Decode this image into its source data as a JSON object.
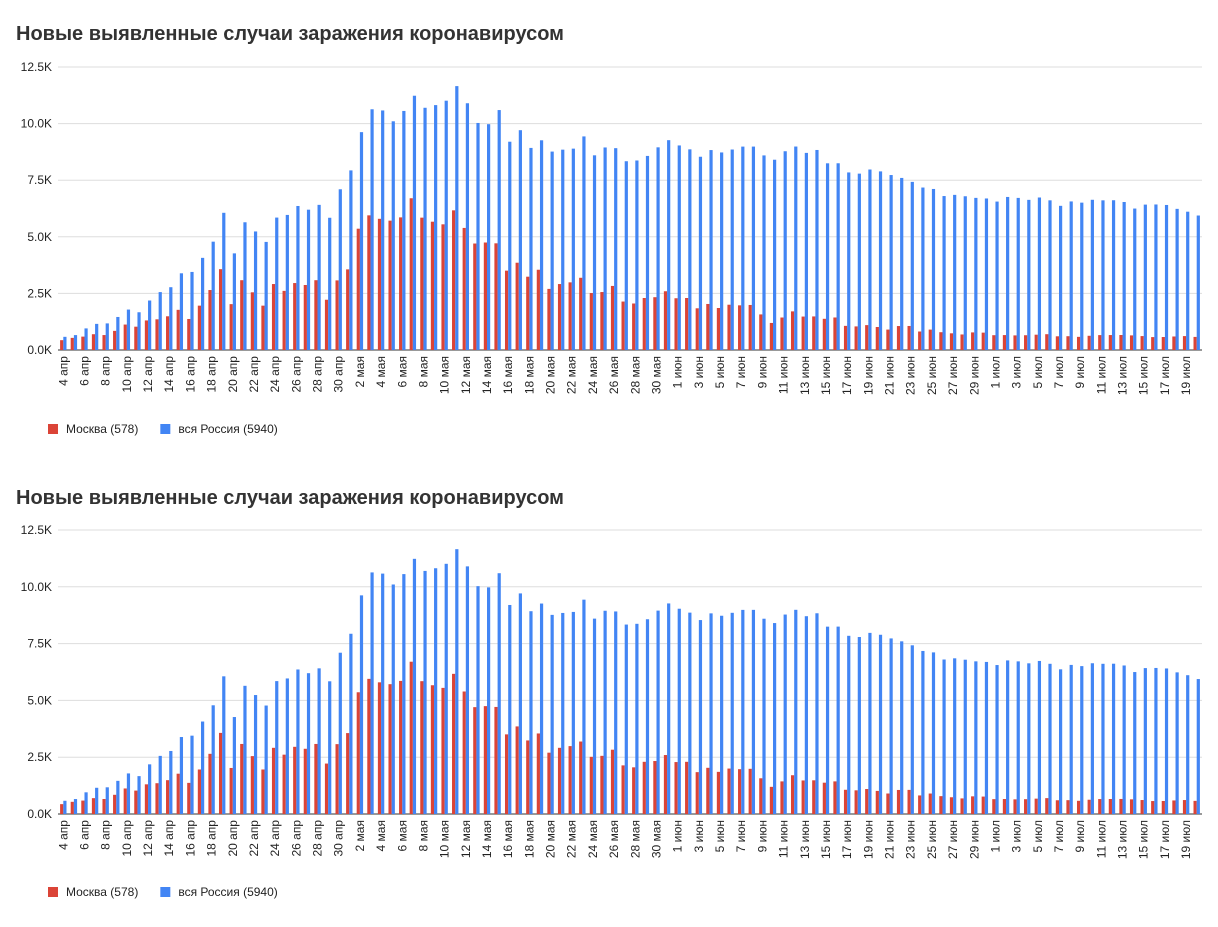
{
  "chart_data": [
    {
      "type": "bar",
      "title": "Новые выявленные случаи заражения коронавирусом",
      "categories": [
        "4 апр",
        null,
        "6 апр",
        null,
        "8 апр",
        null,
        "10 апр",
        null,
        "12 апр",
        null,
        "14 апр",
        null,
        "16 апр",
        null,
        "18 апр",
        null,
        "20 апр",
        null,
        "22 апр",
        null,
        "24 апр",
        null,
        "26 апр",
        null,
        "28 апр",
        null,
        "30 апр",
        null,
        "2 мая",
        null,
        "4 мая",
        null,
        "6 мая",
        null,
        "8 мая",
        null,
        "10 мая",
        null,
        "12 мая",
        null,
        "14 мая",
        null,
        "16 мая",
        null,
        "18 мая",
        null,
        "20 мая",
        null,
        "22 мая",
        null,
        "24 мая",
        null,
        "26 мая",
        null,
        "28 мая",
        null,
        "30 мая",
        null,
        "1 июн",
        null,
        "3 июн",
        null,
        "5 июн",
        null,
        "7 июн",
        null,
        "9 июн",
        null,
        "11 июн",
        null,
        "13 июн",
        null,
        "15 июн",
        null,
        "17 июн",
        null,
        "19 июн",
        null,
        "21 июн",
        null,
        "23 июн",
        null,
        "25 июн",
        null,
        "27 июн",
        null,
        "29 июн",
        null,
        "1 июл",
        null,
        "3 июл",
        null,
        "5 июл",
        null,
        "7 июл",
        null,
        "9 июл",
        null,
        "11 июл",
        null,
        "13 июл",
        null,
        "15 июл",
        null,
        "17 июл",
        null,
        "19 июл",
        null
      ],
      "series": [
        {
          "name": "Москва (578)",
          "color": "#db4437",
          "values": [
            434,
            536,
            591,
            697,
            660,
            845,
            1124,
            1030,
            1306,
            1355,
            1489,
            1774,
            1370,
            1959,
            2649,
            3570,
            2026,
            3083,
            2548,
            1959,
            2913,
            2612,
            2957,
            2871,
            3083,
            2220,
            3075,
            3561,
            5358,
            5948,
            5795,
            5714,
            5858,
            6703,
            5846,
            5667,
            5551,
            6169,
            5392,
            4703,
            4748,
            4712,
            3505,
            3855,
            3238,
            3545,
            2699,
            2913,
            2988,
            3190,
            2516,
            2560,
            2830,
            2140,
            2054,
            2297,
            2332,
            2595,
            2286,
            2297,
            1842,
            2033,
            1855,
            2000,
            1973,
            1989,
            1572,
            1195,
            1435,
            1706,
            1477,
            1483,
            1378,
            1436,
            1066,
            1042,
            1099,
            1016,
            902,
            1058,
            1061,
            817,
            901,
            786,
            737,
            686,
            777,
            767,
            654,
            659,
            645,
            652,
            676,
            698,
            605,
            609,
            581,
            628,
            658,
            660,
            662,
            645,
            615,
            570,
            573,
            597,
            614,
            578
          ]
        },
        {
          "name": "вся Россия (5940)",
          "color": "#4285f4",
          "values": [
            582,
            658,
            954,
            1154,
            1175,
            1459,
            1786,
            1667,
            2186,
            2558,
            2774,
            3388,
            3448,
            4070,
            4785,
            6060,
            4268,
            5642,
            5236,
            4774,
            5849,
            5966,
            6361,
            6198,
            6411,
            5841,
            7099,
            7933,
            9623,
            10633,
            10581,
            10102,
            10559,
            11231,
            10699,
            10817,
            11012,
            11656,
            10899,
            10028,
            9974,
            10598,
            9200,
            9709,
            8926,
            9263,
            8764,
            8849,
            8894,
            9434,
            8599,
            8946,
            8915,
            8338,
            8371,
            8572,
            8952,
            9268,
            9035,
            8863,
            8536,
            8831,
            8726,
            8855,
            8984,
            8985,
            8595,
            8404,
            8779,
            8987,
            8706,
            8835,
            8246,
            8248,
            7843,
            7790,
            7972,
            7889,
            7728,
            7600,
            7425,
            7176,
            7113,
            6800,
            6852,
            6791,
            6719,
            6693,
            6556,
            6760,
            6718,
            6632,
            6736,
            6611,
            6368,
            6562,
            6509,
            6635,
            6611,
            6615,
            6537,
            6248,
            6422,
            6428,
            6406,
            6234,
            6109,
            5940
          ]
        }
      ],
      "ylim": [
        0,
        12500
      ],
      "yticks": [
        {
          "value": 0,
          "label": "0.0K"
        },
        {
          "value": 2500,
          "label": "2.5K"
        },
        {
          "value": 5000,
          "label": "5.0K"
        },
        {
          "value": 7500,
          "label": "7.5K"
        },
        {
          "value": 10000,
          "label": "10.0K"
        },
        {
          "value": 12500,
          "label": "12.5K"
        }
      ],
      "grid": true,
      "legend": "bottom-left"
    },
    {
      "type": "bar",
      "title": "Новые выявленные случаи заражения коронавирусом",
      "categories": [
        "4 апр",
        null,
        "6 апр",
        null,
        "8 апр",
        null,
        "10 апр",
        null,
        "12 апр",
        null,
        "14 апр",
        null,
        "16 апр",
        null,
        "18 апр",
        null,
        "20 апр",
        null,
        "22 апр",
        null,
        "24 апр",
        null,
        "26 апр",
        null,
        "28 апр",
        null,
        "30 апр",
        null,
        "2 мая",
        null,
        "4 мая",
        null,
        "6 мая",
        null,
        "8 мая",
        null,
        "10 мая",
        null,
        "12 мая",
        null,
        "14 мая",
        null,
        "16 мая",
        null,
        "18 мая",
        null,
        "20 мая",
        null,
        "22 мая",
        null,
        "24 мая",
        null,
        "26 мая",
        null,
        "28 мая",
        null,
        "30 мая",
        null,
        "1 июн",
        null,
        "3 июн",
        null,
        "5 июн",
        null,
        "7 июн",
        null,
        "9 июн",
        null,
        "11 июн",
        null,
        "13 июн",
        null,
        "15 июн",
        null,
        "17 июн",
        null,
        "19 июн",
        null,
        "21 июн",
        null,
        "23 июн",
        null,
        "25 июн",
        null,
        "27 июн",
        null,
        "29 июн",
        null,
        "1 июл",
        null,
        "3 июл",
        null,
        "5 июл",
        null,
        "7 июл",
        null,
        "9 июл",
        null,
        "11 июл",
        null,
        "13 июл",
        null,
        "15 июл",
        null,
        "17 июл",
        null,
        "19 июл",
        null
      ],
      "series": [
        {
          "name": "Москва (578)",
          "color": "#db4437",
          "values": [
            434,
            536,
            591,
            697,
            660,
            845,
            1124,
            1030,
            1306,
            1355,
            1489,
            1774,
            1370,
            1959,
            2649,
            3570,
            2026,
            3083,
            2548,
            1959,
            2913,
            2612,
            2957,
            2871,
            3083,
            2220,
            3075,
            3561,
            5358,
            5948,
            5795,
            5714,
            5858,
            6703,
            5846,
            5667,
            5551,
            6169,
            5392,
            4703,
            4748,
            4712,
            3505,
            3855,
            3238,
            3545,
            2699,
            2913,
            2988,
            3190,
            2516,
            2560,
            2830,
            2140,
            2054,
            2297,
            2332,
            2595,
            2286,
            2297,
            1842,
            2033,
            1855,
            2000,
            1973,
            1989,
            1572,
            1195,
            1435,
            1706,
            1477,
            1483,
            1378,
            1436,
            1066,
            1042,
            1099,
            1016,
            902,
            1058,
            1061,
            817,
            901,
            786,
            737,
            686,
            777,
            767,
            654,
            659,
            645,
            652,
            676,
            698,
            605,
            609,
            581,
            628,
            658,
            660,
            662,
            645,
            615,
            570,
            573,
            597,
            614,
            578
          ]
        },
        {
          "name": "вся Россия (5940)",
          "color": "#4285f4",
          "values": [
            582,
            658,
            954,
            1154,
            1175,
            1459,
            1786,
            1667,
            2186,
            2558,
            2774,
            3388,
            3448,
            4070,
            4785,
            6060,
            4268,
            5642,
            5236,
            4774,
            5849,
            5966,
            6361,
            6198,
            6411,
            5841,
            7099,
            7933,
            9623,
            10633,
            10581,
            10102,
            10559,
            11231,
            10699,
            10817,
            11012,
            11656,
            10899,
            10028,
            9974,
            10598,
            9200,
            9709,
            8926,
            9263,
            8764,
            8849,
            8894,
            9434,
            8599,
            8946,
            8915,
            8338,
            8371,
            8572,
            8952,
            9268,
            9035,
            8863,
            8536,
            8831,
            8726,
            8855,
            8984,
            8985,
            8595,
            8404,
            8779,
            8987,
            8706,
            8835,
            8246,
            8248,
            7843,
            7790,
            7972,
            7889,
            7728,
            7600,
            7425,
            7176,
            7113,
            6800,
            6852,
            6791,
            6719,
            6693,
            6556,
            6760,
            6718,
            6632,
            6736,
            6611,
            6368,
            6562,
            6509,
            6635,
            6611,
            6615,
            6537,
            6248,
            6422,
            6428,
            6406,
            6234,
            6109,
            5940
          ]
        }
      ],
      "ylim": [
        0,
        12500
      ],
      "yticks": [
        {
          "value": 0,
          "label": "0.0K"
        },
        {
          "value": 2500,
          "label": "2.5K"
        },
        {
          "value": 5000,
          "label": "5.0K"
        },
        {
          "value": 7500,
          "label": "7.5K"
        },
        {
          "value": 10000,
          "label": "10.0K"
        },
        {
          "value": 12500,
          "label": "12.5K"
        }
      ],
      "grid": true,
      "legend": "bottom-left"
    }
  ]
}
